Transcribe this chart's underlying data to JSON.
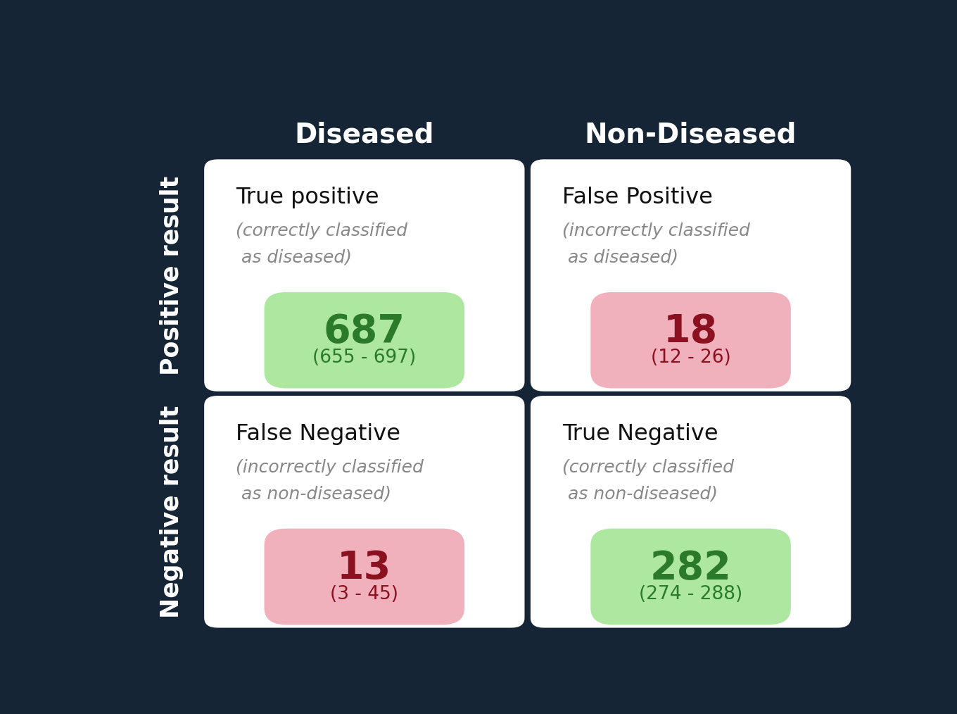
{
  "background_color": "#152535",
  "col_headers": [
    "Diseased",
    "Non-Diseased"
  ],
  "row_headers": [
    "Positive result",
    "Negative result"
  ],
  "cells": [
    {
      "title": "True positive",
      "subtitle_line1": "(correctly classified",
      "subtitle_line2": " as diseased)",
      "value": "687",
      "range": "(655 - 697)",
      "badge_color": "#aee8a0",
      "value_color": "#2a7a2a",
      "row": 0,
      "col": 0
    },
    {
      "title": "False Positive",
      "subtitle_line1": "(incorrectly classified",
      "subtitle_line2": " as diseased)",
      "value": "18",
      "range": "(12 - 26)",
      "badge_color": "#f0b0bc",
      "value_color": "#8b1020",
      "row": 0,
      "col": 1
    },
    {
      "title": "False Negative",
      "subtitle_line1": "(incorrectly classified",
      "subtitle_line2": " as non-diseased)",
      "value": "13",
      "range": "(3 - 45)",
      "badge_color": "#f0b0bc",
      "value_color": "#8b1020",
      "row": 1,
      "col": 0
    },
    {
      "title": "True Negative",
      "subtitle_line1": "(correctly classified",
      "subtitle_line2": " as non-diseased)",
      "value": "282",
      "range": "(274 - 288)",
      "badge_color": "#aee8a0",
      "value_color": "#2a7a2a",
      "row": 1,
      "col": 1
    }
  ],
  "col_header_color": "#ffffff",
  "row_header_color": "#ffffff",
  "cell_bg_color": "#ffffff",
  "cell_title_color": "#111111",
  "cell_subtitle_color": "#888888",
  "title_fontsize": 23,
  "subtitle_fontsize": 18,
  "value_fontsize": 40,
  "range_fontsize": 19,
  "header_fontsize": 28,
  "row_header_fontsize": 25
}
